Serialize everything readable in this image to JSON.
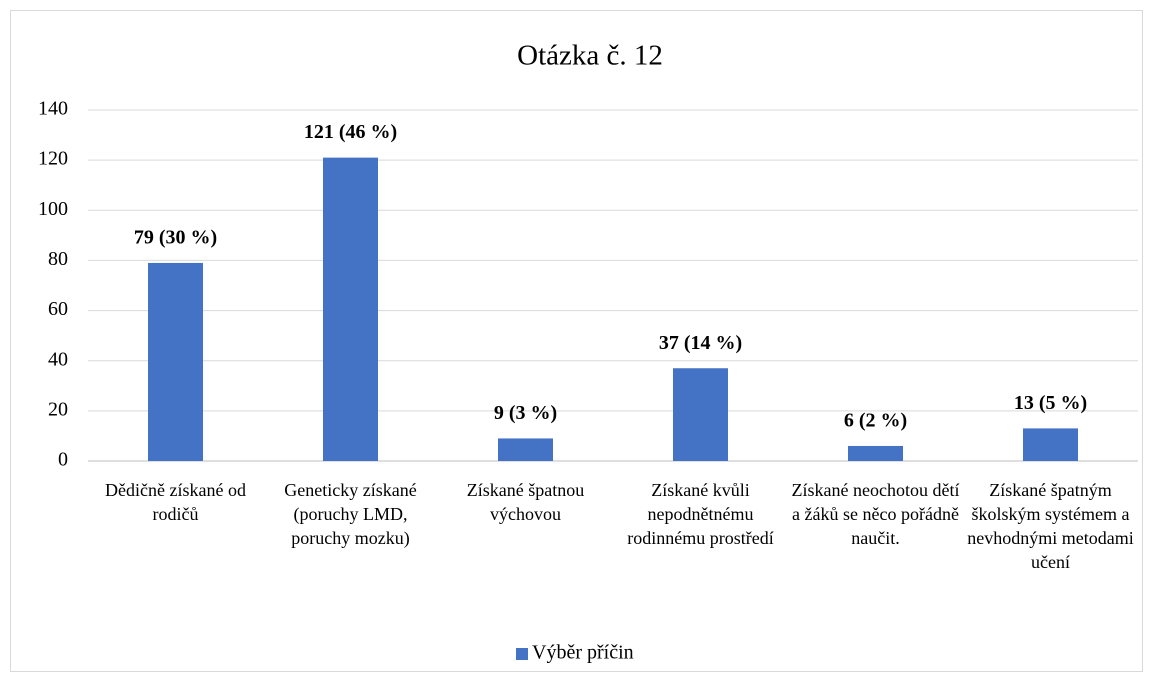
{
  "chart_data": {
    "type": "bar",
    "title": "Otázka č. 12",
    "categories": [
      "Dědičně získané od rodičů",
      "Geneticky získané (poruchy LMD, poruchy mozku)",
      "Získané špatnou výchovou",
      "Získané kvůli nepodnětnému rodinnému prostředí",
      "Získané neochotou dětí a žáků se něco pořádně naučit.",
      "Získané špatným školským systémem a nevhodnými metodami učení"
    ],
    "series": [
      {
        "name": "Výběr příčin",
        "color": "#4472c4",
        "values": [
          79,
          121,
          9,
          37,
          6,
          13
        ],
        "value_labels": [
          "79 (30 %)",
          "121 (46 %)",
          "9 (3 %)",
          "37 (14 %)",
          "6 (2 %)",
          "13 (5 %)"
        ]
      }
    ],
    "ylim": [
      0,
      140
    ],
    "yticks": [
      0,
      20,
      40,
      60,
      80,
      100,
      120,
      140
    ],
    "grid": true,
    "legend": "bottom"
  }
}
